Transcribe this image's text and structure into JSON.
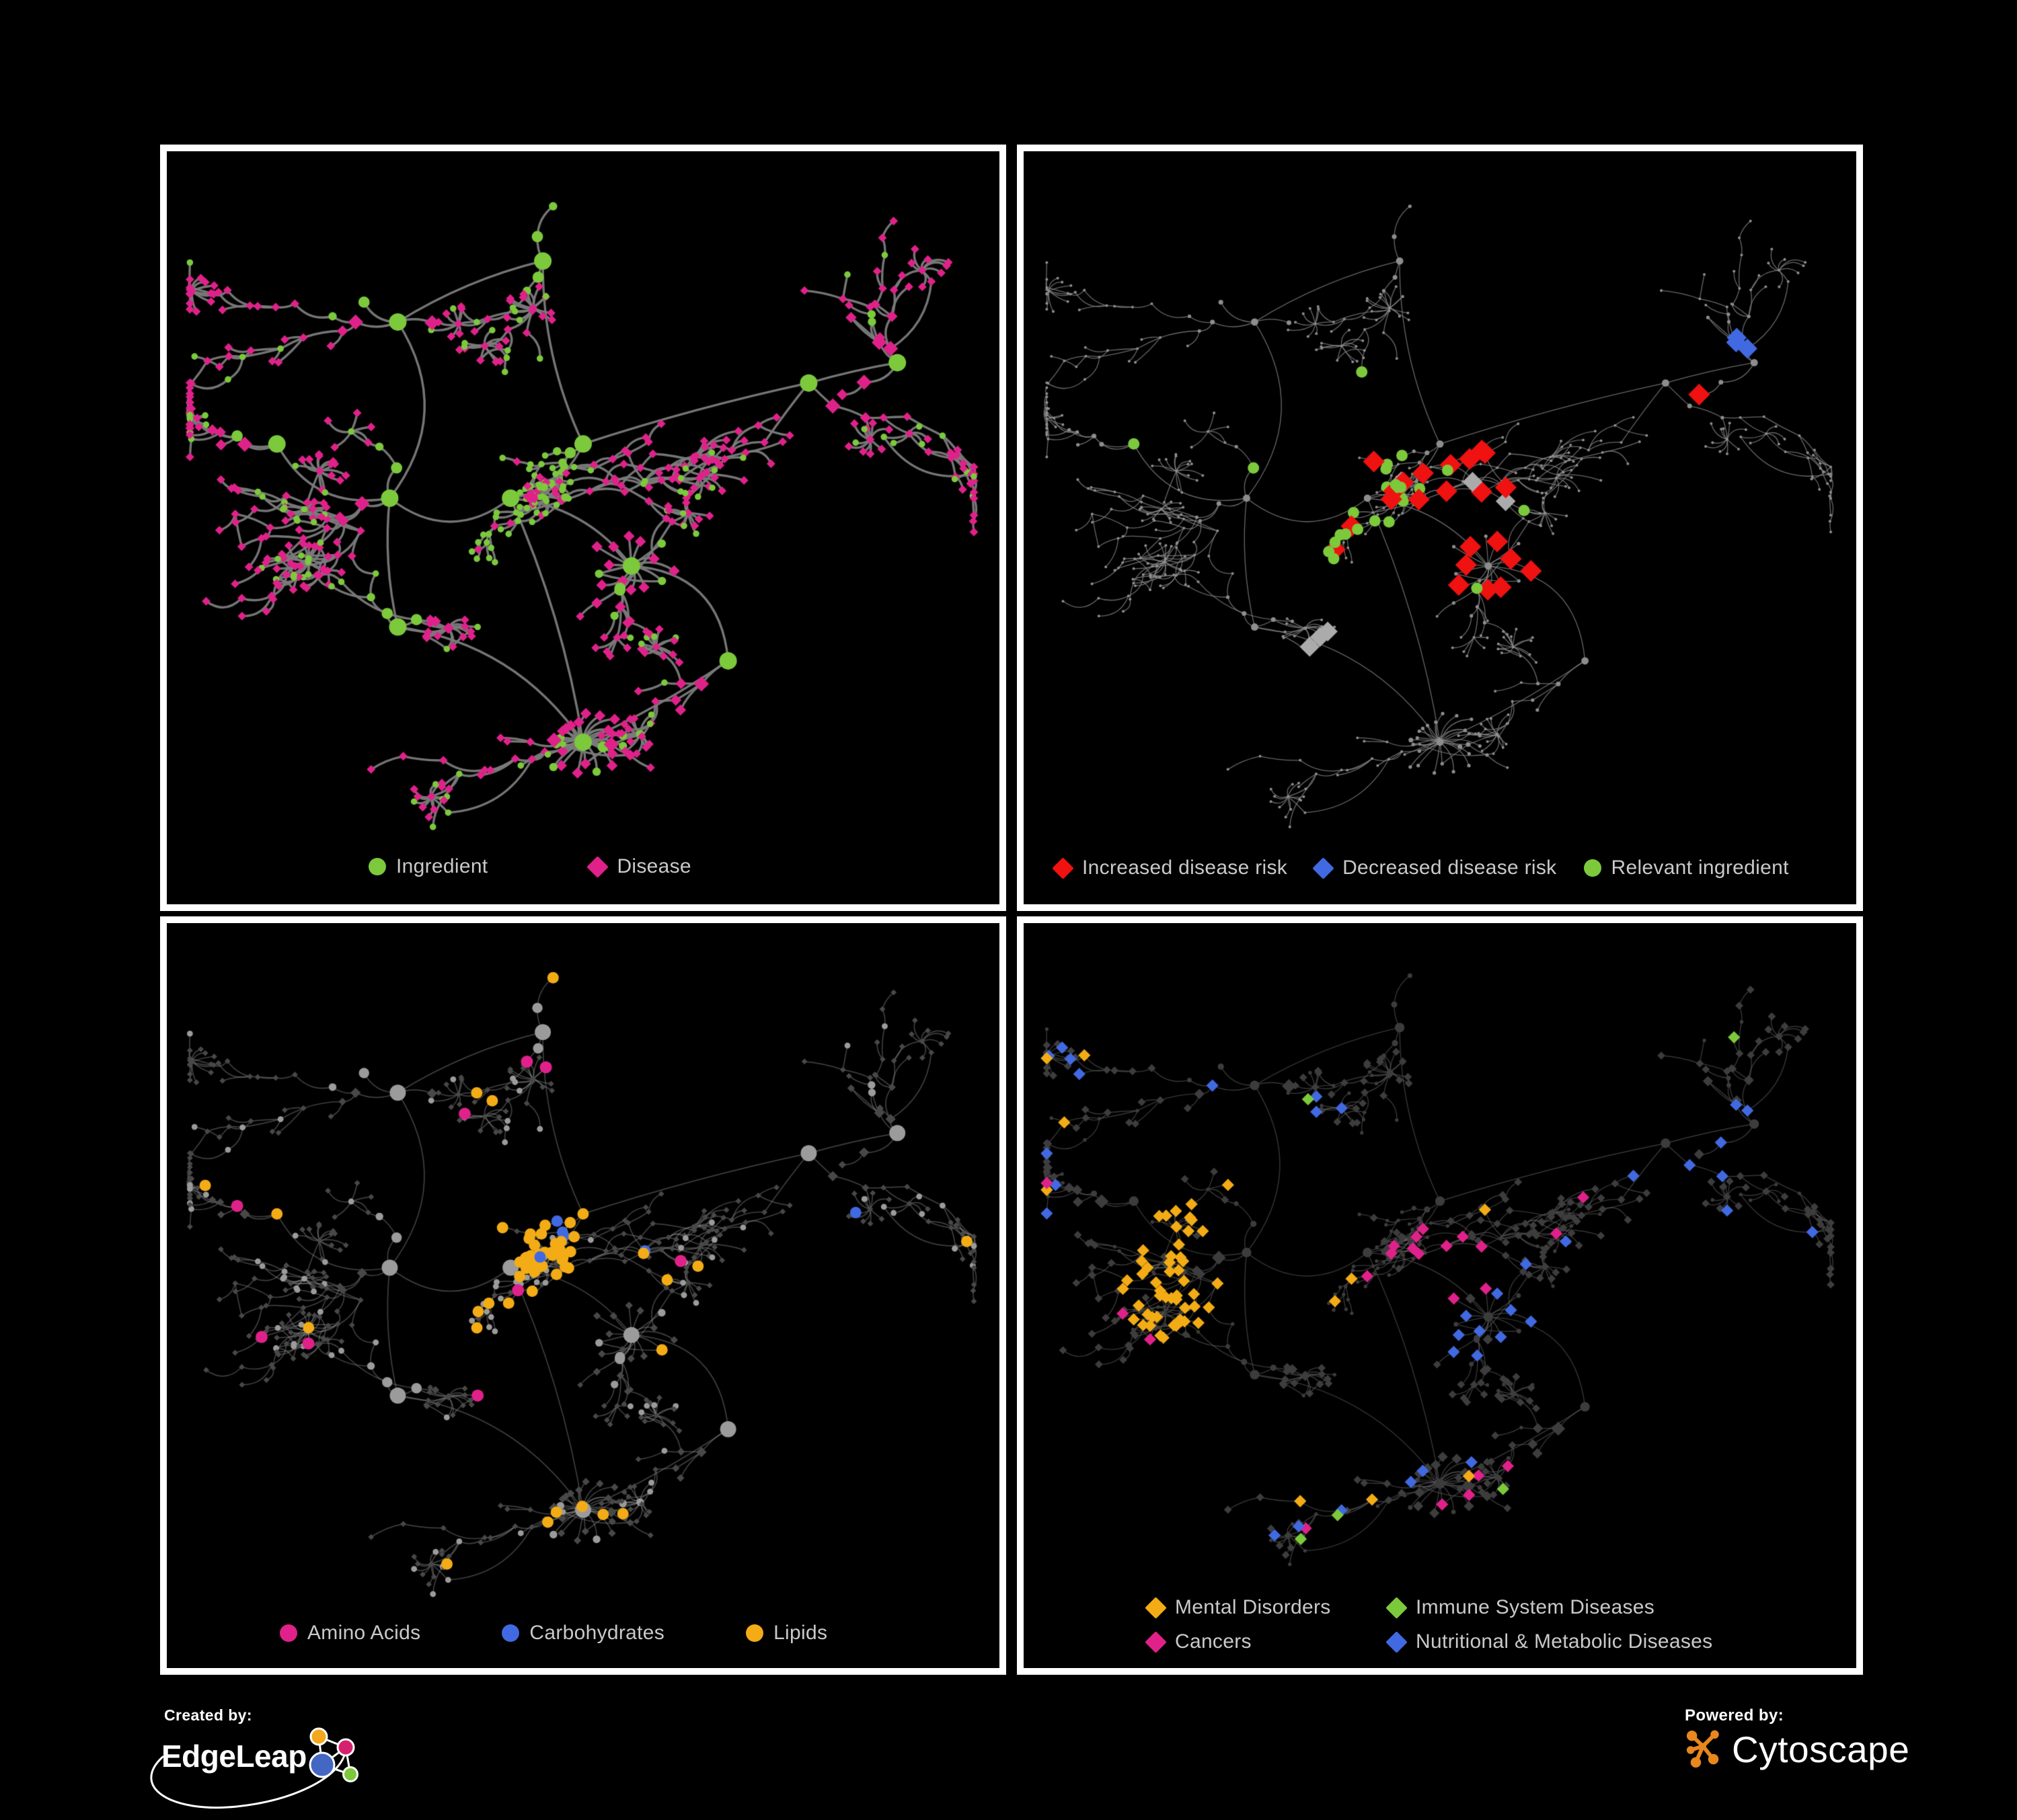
{
  "panels": [
    {
      "id": "ingredient-disease",
      "legend": {
        "items": [
          {
            "label": "Ingredient",
            "color": "#7CC93C",
            "shape": "circle"
          },
          {
            "label": "Disease",
            "color": "#E0218A",
            "shape": "diamond"
          }
        ]
      }
    },
    {
      "id": "disease-risk",
      "legend": {
        "items": [
          {
            "label": "Increased disease risk",
            "color": "#F01111",
            "shape": "diamond"
          },
          {
            "label": "Decreased disease risk",
            "color": "#4169E1",
            "shape": "diamond"
          },
          {
            "label": "Relevant ingredient",
            "color": "#7CC93C",
            "shape": "circle"
          }
        ]
      }
    },
    {
      "id": "nutrient-classes",
      "legend": {
        "items": [
          {
            "label": "Amino Acids",
            "color": "#E0218A",
            "shape": "circle"
          },
          {
            "label": "Carbohydrates",
            "color": "#4169E1",
            "shape": "circle"
          },
          {
            "label": "Lipids",
            "color": "#F3AC15",
            "shape": "circle"
          }
        ]
      }
    },
    {
      "id": "disease-classes",
      "legend": {
        "items": [
          {
            "label": "Mental Disorders",
            "color": "#F3AC15",
            "shape": "diamond"
          },
          {
            "label": "Immune System Diseases",
            "color": "#7CC93C",
            "shape": "diamond"
          },
          {
            "label": "Cancers",
            "color": "#E0218A",
            "shape": "diamond"
          },
          {
            "label": "Nutritional & Metabolic Diseases",
            "color": "#4169E1",
            "shape": "diamond"
          }
        ]
      }
    }
  ],
  "footer": {
    "created_by_label": "Created by:",
    "created_by_brand": "EdgeLeap",
    "powered_by_label": "Powered by:",
    "powered_by_brand": "Cytoscape"
  },
  "chart_data": {
    "type": "network",
    "description": "Four views of the same ingredient-disease association network rendered on black panels. Node shapes: circles = ingredients, diamonds = diseases. Each panel recolors the shared layout per its legend.",
    "background": "#000000",
    "edge_color_overview": "#7B7B7B",
    "seed": 20,
    "node_count": 646,
    "extra_edges": 45,
    "clusters": [
      {
        "x": 0.5,
        "y": 0.42,
        "n": 70,
        "tight": 1,
        "ing": 0.85,
        "burst": 0.02
      },
      {
        "x": 0.26,
        "y": 0.5,
        "n": 95,
        "burst": 0.07
      },
      {
        "x": 0.41,
        "y": 0.5,
        "n": 100,
        "burst": 0.06
      },
      {
        "x": 0.56,
        "y": 0.6,
        "n": 45,
        "burst": 0.1,
        "star": 14
      },
      {
        "x": 0.5,
        "y": 0.86,
        "n": 38,
        "burst": 0.04,
        "star": 20
      },
      {
        "x": 0.68,
        "y": 0.74,
        "n": 48,
        "burst": 0.09
      },
      {
        "x": 0.78,
        "y": 0.33,
        "n": 46,
        "burst": 0.08
      },
      {
        "x": 0.45,
        "y": 0.15,
        "n": 50,
        "burst": 0.05
      },
      {
        "x": 0.27,
        "y": 0.24,
        "n": 45,
        "burst": 0.06
      },
      {
        "x": 0.12,
        "y": 0.42,
        "n": 30,
        "burst": 0.05
      },
      {
        "x": 0.27,
        "y": 0.69,
        "n": 45,
        "burst": 0.07
      },
      {
        "x": 0.89,
        "y": 0.3,
        "n": 34,
        "burst": 0.09
      }
    ],
    "backbone": [
      [
        0,
        2
      ],
      [
        2,
        1
      ],
      [
        2,
        3
      ],
      [
        3,
        5
      ],
      [
        1,
        9
      ],
      [
        1,
        10
      ],
      [
        2,
        4
      ],
      [
        0,
        7
      ],
      [
        7,
        8
      ],
      [
        0,
        6
      ],
      [
        6,
        11
      ],
      [
        4,
        5
      ],
      [
        8,
        1
      ],
      [
        10,
        4
      ]
    ],
    "panels": [
      {
        "name": "ingredient-disease",
        "bottom_margin": 100,
        "edge": {
          "color": "#7B7B7B",
          "width": 3.4,
          "alpha": 0.95
        },
        "base": {
          "c": {
            "color": "#7CC93C",
            "scale": 1
          },
          "d": {
            "color": "#E0218A",
            "scale": 1
          }
        },
        "classes": {},
        "rules": []
      },
      {
        "name": "disease-risk",
        "bottom_margin": 100,
        "edge": {
          "color": "#8A8A8A",
          "width": 1.3,
          "alpha": 0.75
        },
        "base": {
          "c": {
            "color": "#8D8D8D",
            "scale": 0.42,
            "shape": "c"
          },
          "d": {
            "color": "#8D8D8D",
            "scale": 0.42,
            "shape": "c"
          }
        },
        "classes": {
          "increased": {
            "shape": "d",
            "color": "#F01111",
            "size": 12
          },
          "decreased": {
            "shape": "d",
            "color": "#4169E1",
            "size": 11
          },
          "unchanged": {
            "shape": "d",
            "color": "#ABABAB",
            "size": 11
          },
          "relevant": {
            "shape": "c",
            "color": "#7CC93C",
            "size": 8.5
          }
        },
        "rules": [
          {
            "kind": "d",
            "x": 0.47,
            "y": 0.52,
            "r": 0.13,
            "p": 0.4,
            "cls": "increased"
          },
          {
            "kind": "d",
            "x": 0.33,
            "y": 0.5,
            "r": 0.05,
            "p": 0.45,
            "cls": "increased"
          },
          {
            "kind": "d",
            "x": 0.57,
            "y": 0.6,
            "r": 0.05,
            "p": 0.45,
            "cls": "increased"
          },
          {
            "kind": "d",
            "x": 0.8,
            "y": 0.33,
            "r": 0.03,
            "p": 0.9,
            "cls": "increased"
          },
          {
            "kind": "d",
            "x": 0.68,
            "y": 0.8,
            "r": 0.03,
            "p": 0.7,
            "cls": "increased"
          },
          {
            "kind": "d",
            "x": 0.74,
            "y": 0.87,
            "r": 0.03,
            "p": 0.7,
            "cls": "increased"
          },
          {
            "kind": "d",
            "x": 0.27,
            "y": 0.47,
            "r": 0.05,
            "p": 0.55,
            "cls": "decreased"
          },
          {
            "kind": "d",
            "x": 0.89,
            "y": 0.29,
            "r": 0.035,
            "p": 1,
            "cls": "decreased"
          },
          {
            "kind": "d",
            "x": 0.3,
            "y": 0.41,
            "r": 0.035,
            "p": 0.5,
            "cls": "unchanged"
          },
          {
            "kind": "d",
            "x": 0.5,
            "y": 0.56,
            "r": 0.1,
            "p": 0.07,
            "cls": "unchanged"
          },
          {
            "kind": "d",
            "x": 0.36,
            "y": 0.72,
            "r": 0.03,
            "p": 0.5,
            "cls": "unchanged"
          },
          {
            "kind": "d",
            "x": 0.79,
            "y": 0.84,
            "r": 0.025,
            "p": 0.6,
            "cls": "unchanged"
          },
          {
            "kind": "c",
            "x": 0.42,
            "y": 0.5,
            "r": 0.2,
            "p": 0.3,
            "cls": "relevant"
          },
          {
            "kind": "c",
            "x": 0.26,
            "y": 0.3,
            "r": 0.08,
            "p": 0.12,
            "cls": "relevant"
          },
          {
            "kind": "c",
            "x": 0.85,
            "y": 0.6,
            "r": 0.06,
            "p": 0.25,
            "cls": "relevant"
          },
          {
            "kind": "c",
            "x": 0.15,
            "y": 0.45,
            "r": 0.05,
            "p": 0.3,
            "cls": "relevant"
          }
        ]
      },
      {
        "name": "nutrient-classes",
        "bottom_margin": 95,
        "edge": {
          "color": "#9B9B9B",
          "width": 1.7,
          "alpha": 0.4
        },
        "base": {
          "c": {
            "color": "#9B9B9B",
            "scale": 0.92
          },
          "d": {
            "color": "#484848",
            "scale": 0.68,
            "shape": "d"
          }
        },
        "classes": {
          "amino": {
            "shape": "c",
            "color": "#E0218A",
            "size": 9
          },
          "carb": {
            "shape": "c",
            "color": "#4169E1",
            "size": 8.5
          },
          "lipid": {
            "shape": "c",
            "color": "#F3AC15",
            "size": 8.5
          }
        },
        "rules": [
          {
            "kind": "c",
            "x": 0.5,
            "y": 0.42,
            "r": 0.05,
            "p": 0.45,
            "cls": "carb"
          },
          {
            "kind": "c",
            "x": 0.5,
            "y": 0.5,
            "r": 0.8,
            "p": 0.012,
            "cls": "carb"
          },
          {
            "kind": "c",
            "x": 0.5,
            "y": 0.42,
            "r": 0.11,
            "p": 0.8,
            "cls": "lipid"
          },
          {
            "kind": "c",
            "x": 0.41,
            "y": 0.5,
            "r": 0.11,
            "p": 0.3,
            "cls": "lipid"
          },
          {
            "kind": "c",
            "x": 0.5,
            "y": 0.86,
            "r": 0.05,
            "p": 0.8,
            "cls": "lipid"
          },
          {
            "kind": "c",
            "x": 0.56,
            "y": 0.6,
            "r": 0.06,
            "p": 0.35,
            "cls": "lipid"
          },
          {
            "kind": "c",
            "x": 0.5,
            "y": 0.5,
            "r": 0.8,
            "p": 0.09,
            "cls": "lipid"
          },
          {
            "kind": "c",
            "x": 0.5,
            "y": 0.5,
            "r": 0.8,
            "p": 0.065,
            "cls": "amino"
          }
        ]
      },
      {
        "name": "disease-classes",
        "bottom_margin": 140,
        "edge": {
          "color": "#707070",
          "width": 1.4,
          "alpha": 0.48
        },
        "base": {
          "c": {
            "color": "#3C3C3C",
            "scale": 0.55,
            "shape": "c"
          },
          "d": {
            "color": "#3D3D3D",
            "scale": 0.92
          }
        },
        "classes": {
          "mental": {
            "shape": "d",
            "color": "#F3AC15",
            "size": 6.8
          },
          "immune": {
            "shape": "d",
            "color": "#7CC93C",
            "size": 6.8
          },
          "cancer": {
            "shape": "d",
            "color": "#E0218A",
            "size": 6.8
          },
          "nutri": {
            "shape": "d",
            "color": "#4169E1",
            "size": 6.8
          }
        },
        "rules": [
          {
            "kind": "d",
            "x": 0.25,
            "y": 0.53,
            "r": 0.15,
            "p": 0.8,
            "cls": "mental"
          },
          {
            "kind": "d",
            "x": 0.27,
            "y": 0.24,
            "r": 0.06,
            "p": 0.25,
            "cls": "mental"
          },
          {
            "kind": "d",
            "x": 0.5,
            "y": 0.5,
            "r": 0.85,
            "p": 0.02,
            "cls": "mental"
          },
          {
            "kind": "d",
            "x": 0.47,
            "y": 0.54,
            "r": 0.11,
            "p": 0.5,
            "cls": "cancer"
          },
          {
            "kind": "d",
            "x": 0.41,
            "y": 0.5,
            "r": 0.05,
            "p": 0.35,
            "cls": "cancer"
          },
          {
            "kind": "d",
            "x": 0.93,
            "y": 0.27,
            "r": 0.045,
            "p": 0.8,
            "cls": "cancer"
          },
          {
            "kind": "d",
            "x": 0.5,
            "y": 0.86,
            "r": 0.05,
            "p": 0.35,
            "cls": "cancer"
          },
          {
            "kind": "d",
            "x": 0.5,
            "y": 0.5,
            "r": 0.85,
            "p": 0.015,
            "cls": "cancer"
          },
          {
            "kind": "d",
            "x": 0.57,
            "y": 0.6,
            "r": 0.07,
            "p": 0.8,
            "cls": "nutri"
          },
          {
            "kind": "d",
            "x": 0.68,
            "y": 0.74,
            "r": 0.05,
            "p": 0.45,
            "cls": "nutri"
          },
          {
            "kind": "d",
            "x": 0.78,
            "y": 0.33,
            "r": 0.09,
            "p": 0.5,
            "cls": "nutri"
          },
          {
            "kind": "d",
            "x": 0.89,
            "y": 0.29,
            "r": 0.05,
            "p": 0.6,
            "cls": "nutri"
          },
          {
            "kind": "d",
            "x": 0.47,
            "y": 0.1,
            "r": 0.06,
            "p": 0.5,
            "cls": "nutri"
          },
          {
            "kind": "d",
            "x": 0.5,
            "y": 0.5,
            "r": 0.85,
            "p": 0.05,
            "cls": "nutri"
          },
          {
            "kind": "d",
            "x": 0.5,
            "y": 0.5,
            "r": 0.85,
            "p": 0.018,
            "cls": "immune"
          }
        ]
      }
    ]
  }
}
